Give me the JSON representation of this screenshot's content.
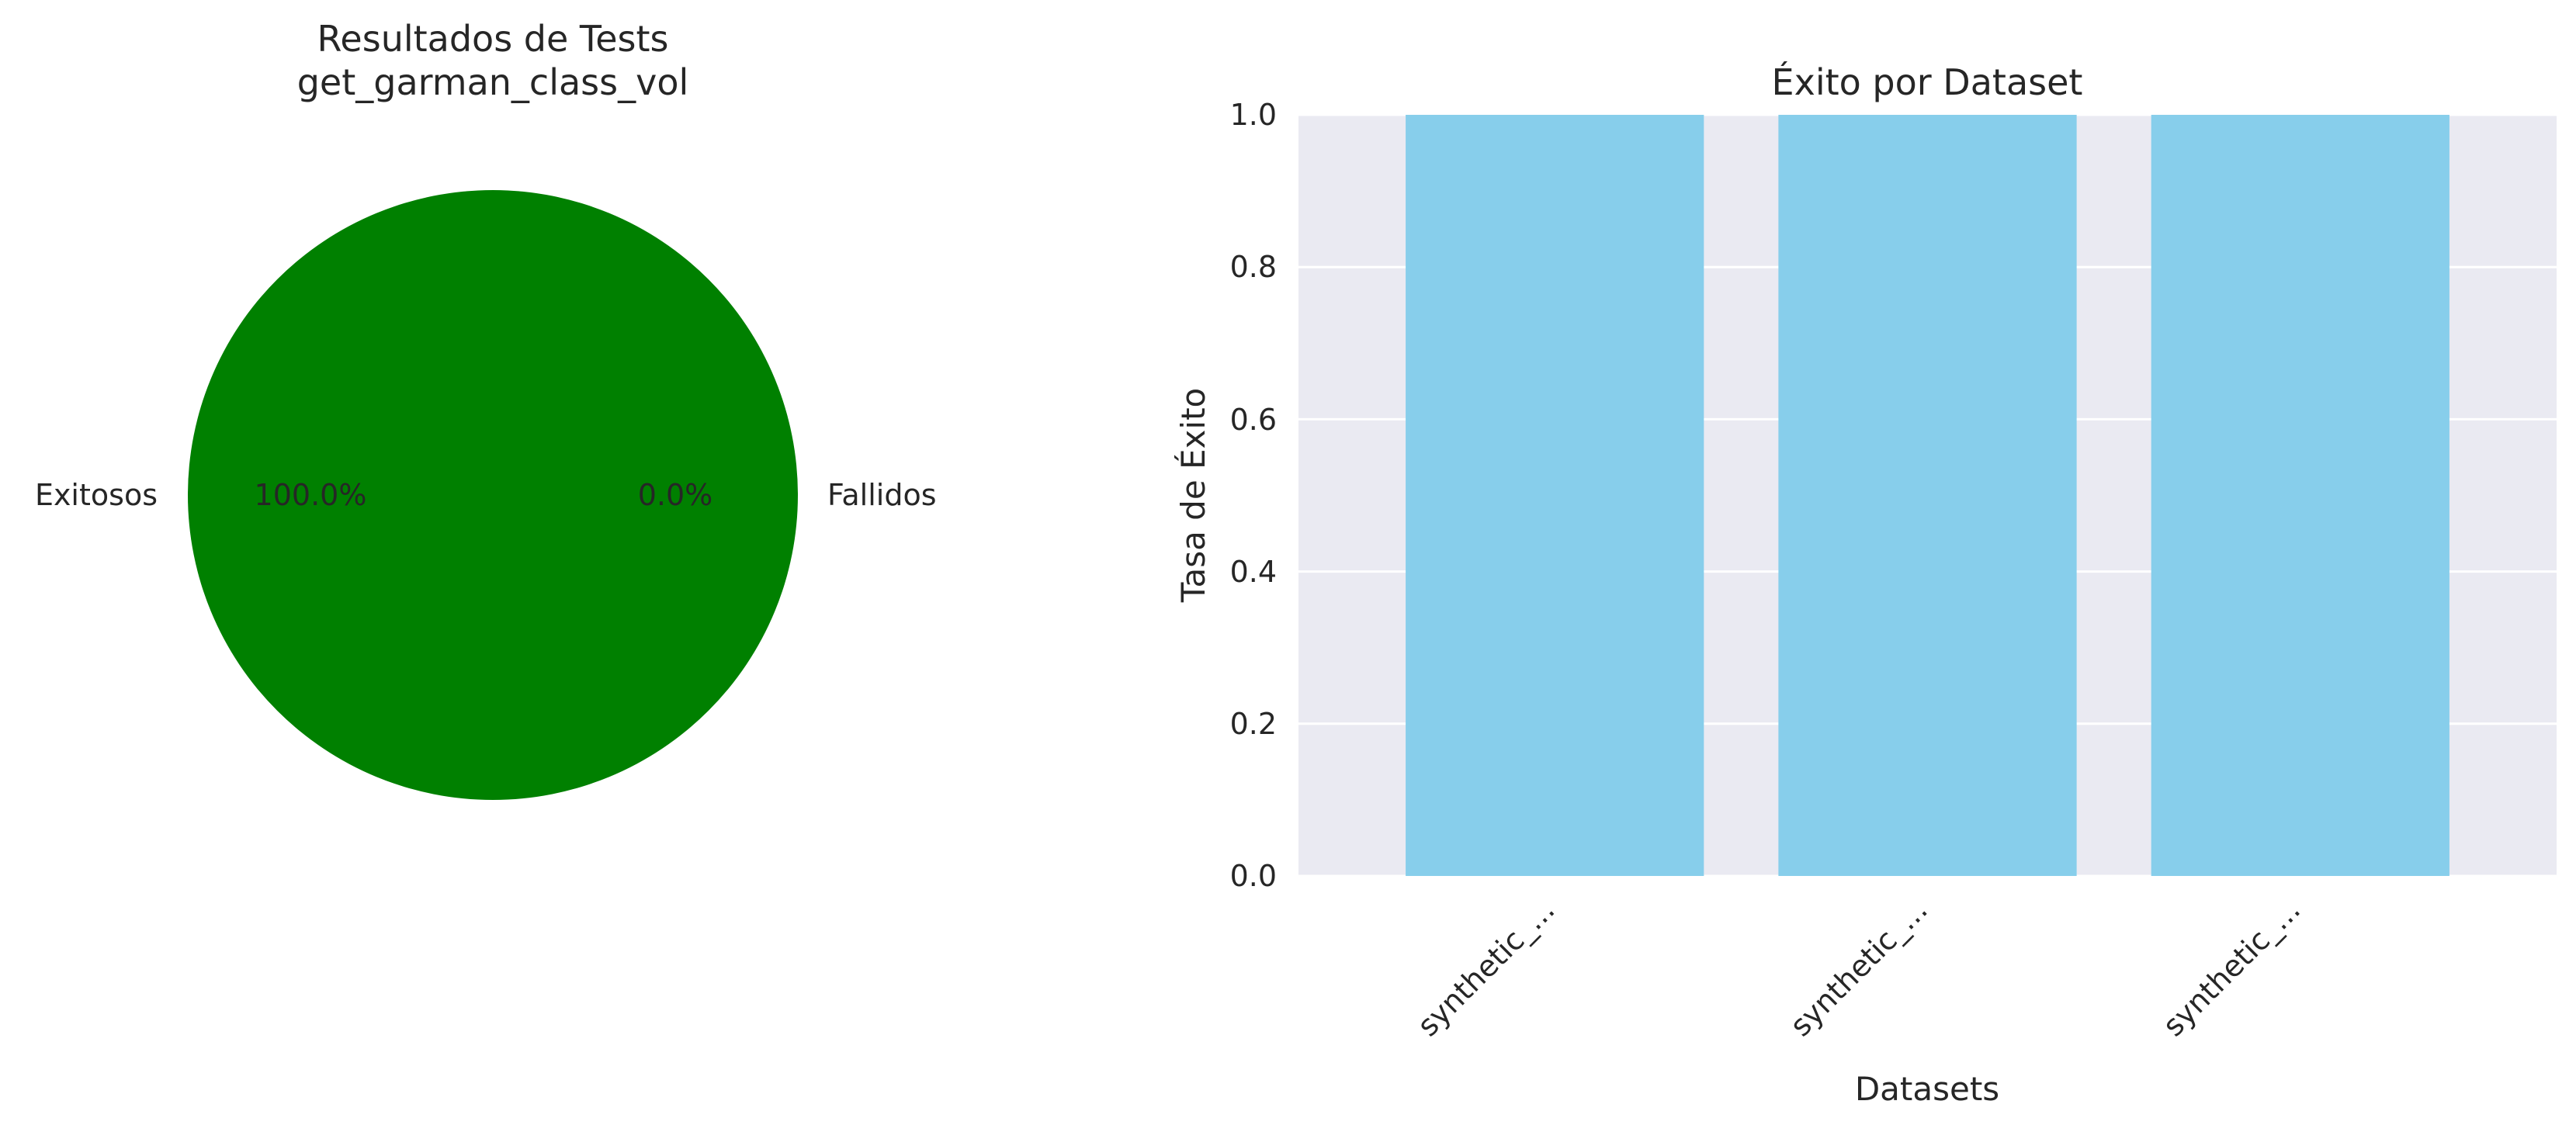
{
  "chart_data": [
    {
      "type": "pie",
      "title_line1": "Resultados de Tests",
      "title_line2": "get_garman_class_vol",
      "labels": [
        "Exitosos",
        "Fallidos"
      ],
      "values": [
        100.0,
        0.0
      ],
      "pct_labels": [
        "100.0%",
        "0.0%"
      ],
      "colors": [
        "#008000",
        "#ff0000"
      ]
    },
    {
      "type": "bar",
      "title": "Éxito por Dataset",
      "xlabel": "Datasets",
      "ylabel": "Tasa de Éxito",
      "categories": [
        "synthetic_...",
        "synthetic_...",
        "synthetic_..."
      ],
      "values": [
        1.0,
        1.0,
        1.0
      ],
      "ylim": [
        0,
        1.0
      ],
      "yticks": [
        0.0,
        0.2,
        0.4,
        0.6,
        0.8,
        1.0
      ],
      "ytick_labels": [
        "0.0",
        "0.2",
        "0.4",
        "0.6",
        "0.8",
        "1.0"
      ],
      "grid": true,
      "bar_color": "#87ceeb",
      "plot_bg": "#eaeaf2"
    }
  ]
}
